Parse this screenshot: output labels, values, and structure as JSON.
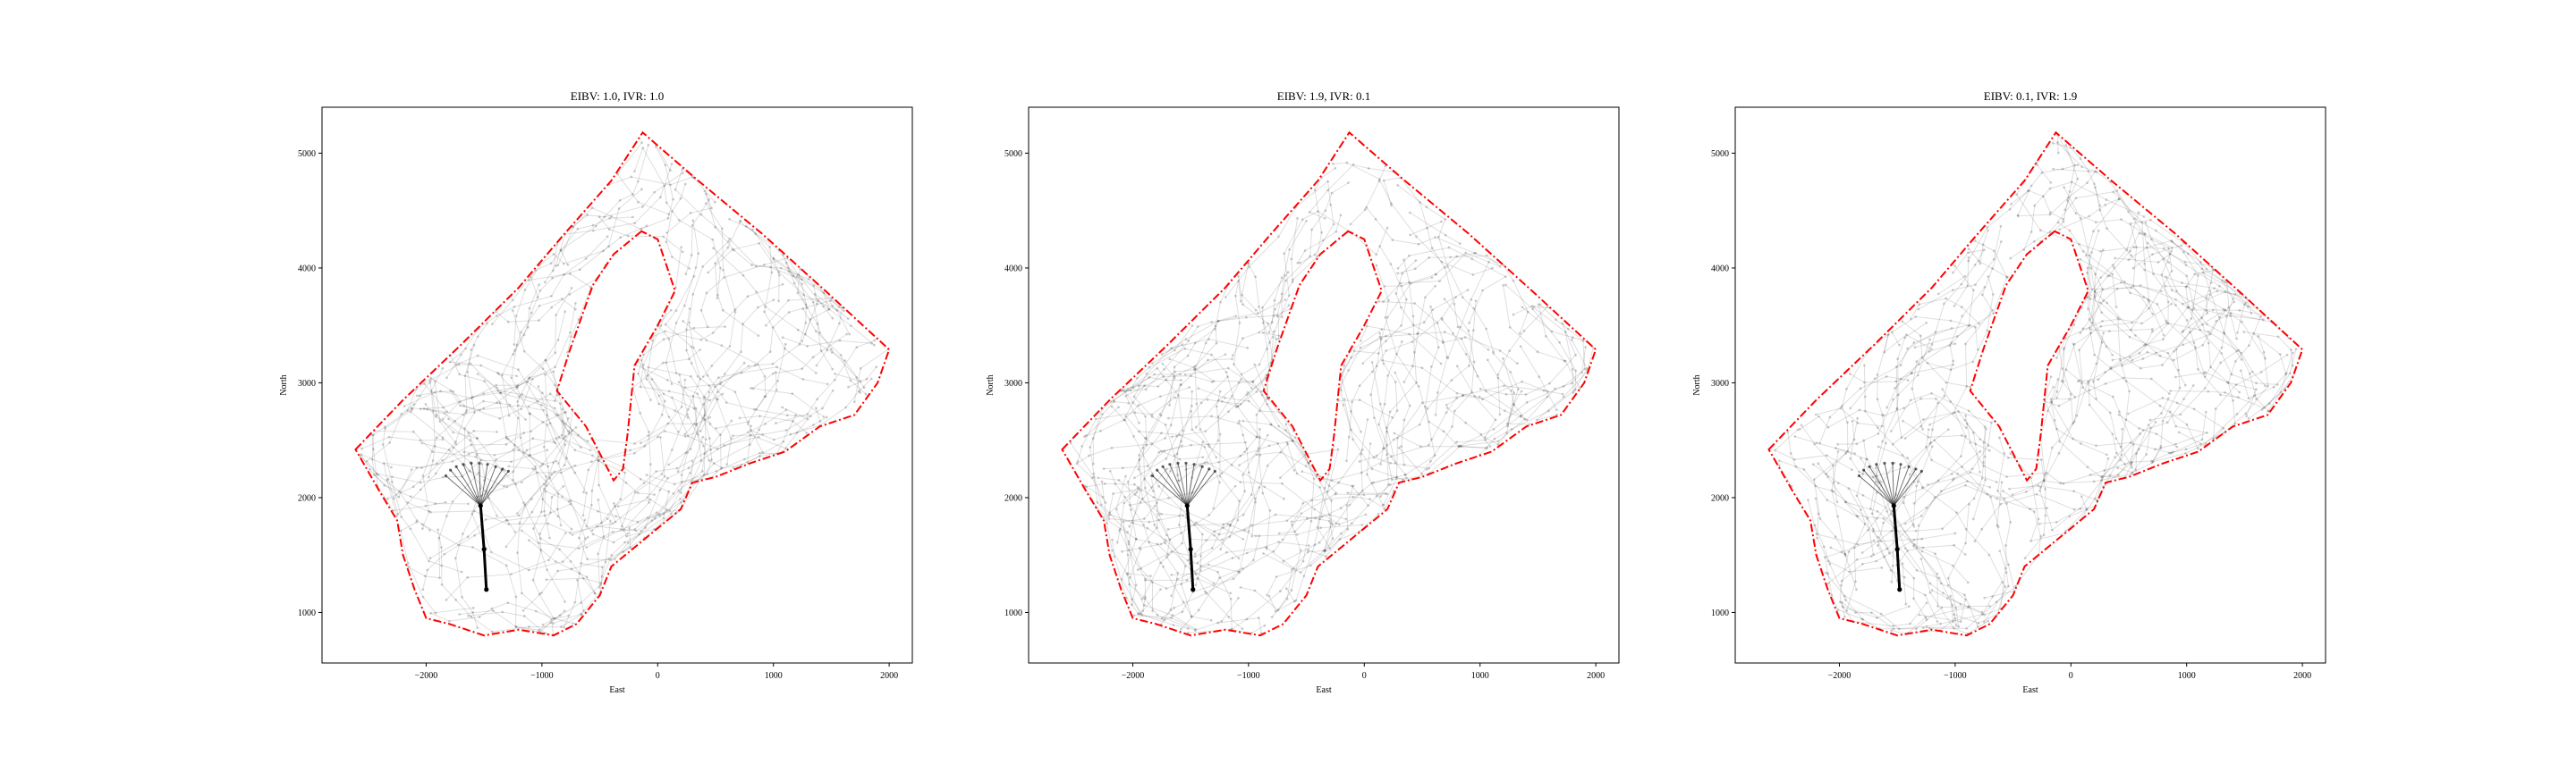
{
  "chart_data": [
    {
      "type": "scatter",
      "title": "EIBV: 1.0, IVR: 1.0",
      "xlabel": "East",
      "ylabel": "North",
      "xlim": [
        -2900,
        2200
      ],
      "ylim": [
        560,
        5400
      ],
      "xticks": [
        -2000,
        -1000,
        0,
        1000,
        2000
      ],
      "yticks": [
        1000,
        2000,
        3000,
        4000,
        5000
      ],
      "xtick_labels": [
        "−2000",
        "−1000",
        "0",
        "1000",
        "2000"
      ],
      "ytick_labels": [
        "1000",
        "2000",
        "3000",
        "4000",
        "5000"
      ],
      "grid": false,
      "weights": {
        "eibv": 1.0,
        "ivr": 1.0
      },
      "path": [
        [
          -1480,
          1200
        ],
        [
          -1500,
          1550
        ],
        [
          -1530,
          1930
        ]
      ],
      "start_point": [
        -1480,
        1200
      ],
      "fan_center": [
        -1530,
        1930
      ],
      "fan_endpoints": [
        [
          -1830,
          2190
        ],
        [
          -1790,
          2240
        ],
        [
          -1740,
          2270
        ],
        [
          -1680,
          2290
        ],
        [
          -1610,
          2300
        ],
        [
          -1540,
          2300
        ],
        [
          -1470,
          2290
        ],
        [
          -1400,
          2270
        ],
        [
          -1340,
          2250
        ],
        [
          -1290,
          2230
        ]
      ],
      "boundary": [
        [
          -2610,
          2420
        ],
        [
          -2200,
          2850
        ],
        [
          -1700,
          3330
        ],
        [
          -1200,
          3830
        ],
        [
          -820,
          4280
        ],
        [
          -400,
          4760
        ],
        [
          -130,
          5180
        ],
        [
          350,
          4760
        ],
        [
          900,
          4300
        ],
        [
          1450,
          3800
        ],
        [
          2000,
          3290
        ],
        [
          1900,
          3000
        ],
        [
          1700,
          2720
        ],
        [
          1400,
          2620
        ],
        [
          1100,
          2400
        ],
        [
          800,
          2300
        ],
        [
          500,
          2180
        ],
        [
          300,
          2130
        ],
        [
          200,
          1900
        ],
        [
          -100,
          1650
        ],
        [
          -400,
          1400
        ],
        [
          -500,
          1150
        ],
        [
          -700,
          900
        ],
        [
          -900,
          800
        ],
        [
          -1200,
          850
        ],
        [
          -1500,
          800
        ],
        [
          -1800,
          900
        ],
        [
          -2000,
          950
        ],
        [
          -2100,
          1200
        ],
        [
          -2200,
          1500
        ],
        [
          -2250,
          1800
        ],
        [
          -2400,
          2050
        ],
        [
          -2610,
          2420
        ]
      ],
      "island": [
        [
          -140,
          4320
        ],
        [
          -380,
          4120
        ],
        [
          -560,
          3850
        ],
        [
          -760,
          3280
        ],
        [
          -870,
          2930
        ],
        [
          -620,
          2620
        ],
        [
          -380,
          2150
        ],
        [
          -300,
          2250
        ],
        [
          -260,
          2550
        ],
        [
          -200,
          3150
        ],
        [
          0,
          3500
        ],
        [
          150,
          3800
        ],
        [
          0,
          4250
        ],
        [
          -140,
          4320
        ]
      ],
      "colors": {
        "boundary": "#ff0000",
        "trajectories": "#000000",
        "path": "#000000"
      },
      "trajectory_count": 170
    },
    {
      "type": "scatter",
      "title": "EIBV: 1.9, IVR: 0.1",
      "xlabel": "East",
      "ylabel": "North",
      "xlim": [
        -2900,
        2200
      ],
      "ylim": [
        560,
        5400
      ],
      "xticks": [
        -2000,
        -1000,
        0,
        1000,
        2000
      ],
      "yticks": [
        1000,
        2000,
        3000,
        4000,
        5000
      ],
      "xtick_labels": [
        "−2000",
        "−1000",
        "0",
        "1000",
        "2000"
      ],
      "ytick_labels": [
        "1000",
        "2000",
        "3000",
        "4000",
        "5000"
      ],
      "grid": false,
      "weights": {
        "eibv": 1.9,
        "ivr": 0.1
      },
      "path": [
        [
          -1480,
          1200
        ],
        [
          -1500,
          1550
        ],
        [
          -1530,
          1930
        ]
      ],
      "start_point": [
        -1480,
        1200
      ],
      "fan_center": [
        -1530,
        1930
      ],
      "fan_endpoints": [
        [
          -1830,
          2190
        ],
        [
          -1790,
          2240
        ],
        [
          -1740,
          2270
        ],
        [
          -1680,
          2290
        ],
        [
          -1610,
          2300
        ],
        [
          -1540,
          2300
        ],
        [
          -1470,
          2290
        ],
        [
          -1400,
          2270
        ],
        [
          -1340,
          2250
        ],
        [
          -1290,
          2230
        ]
      ],
      "boundary": [
        [
          -2610,
          2420
        ],
        [
          -2200,
          2850
        ],
        [
          -1700,
          3330
        ],
        [
          -1200,
          3830
        ],
        [
          -820,
          4280
        ],
        [
          -400,
          4760
        ],
        [
          -130,
          5180
        ],
        [
          350,
          4760
        ],
        [
          900,
          4300
        ],
        [
          1450,
          3800
        ],
        [
          2000,
          3290
        ],
        [
          1900,
          3000
        ],
        [
          1700,
          2720
        ],
        [
          1400,
          2620
        ],
        [
          1100,
          2400
        ],
        [
          800,
          2300
        ],
        [
          500,
          2180
        ],
        [
          300,
          2130
        ],
        [
          200,
          1900
        ],
        [
          -100,
          1650
        ],
        [
          -400,
          1400
        ],
        [
          -500,
          1150
        ],
        [
          -700,
          900
        ],
        [
          -900,
          800
        ],
        [
          -1200,
          850
        ],
        [
          -1500,
          800
        ],
        [
          -1800,
          900
        ],
        [
          -2000,
          950
        ],
        [
          -2100,
          1200
        ],
        [
          -2200,
          1500
        ],
        [
          -2250,
          1800
        ],
        [
          -2400,
          2050
        ],
        [
          -2610,
          2420
        ]
      ],
      "island": [
        [
          -140,
          4320
        ],
        [
          -380,
          4120
        ],
        [
          -560,
          3850
        ],
        [
          -760,
          3280
        ],
        [
          -870,
          2930
        ],
        [
          -620,
          2620
        ],
        [
          -380,
          2150
        ],
        [
          -300,
          2250
        ],
        [
          -260,
          2550
        ],
        [
          -200,
          3150
        ],
        [
          0,
          3500
        ],
        [
          150,
          3800
        ],
        [
          0,
          4250
        ],
        [
          -140,
          4320
        ]
      ],
      "colors": {
        "boundary": "#ff0000",
        "trajectories": "#000000",
        "path": "#000000"
      },
      "trajectory_count": 170
    },
    {
      "type": "scatter",
      "title": "EIBV: 0.1, IVR: 1.9",
      "xlabel": "East",
      "ylabel": "North",
      "xlim": [
        -2900,
        2200
      ],
      "ylim": [
        560,
        5400
      ],
      "xticks": [
        -2000,
        -1000,
        0,
        1000,
        2000
      ],
      "yticks": [
        1000,
        2000,
        3000,
        4000,
        5000
      ],
      "xtick_labels": [
        "−2000",
        "−1000",
        "0",
        "1000",
        "2000"
      ],
      "ytick_labels": [
        "1000",
        "2000",
        "3000",
        "4000",
        "5000"
      ],
      "grid": false,
      "weights": {
        "eibv": 0.1,
        "ivr": 1.9
      },
      "path": [
        [
          -1480,
          1200
        ],
        [
          -1500,
          1550
        ],
        [
          -1530,
          1930
        ]
      ],
      "start_point": [
        -1480,
        1200
      ],
      "fan_center": [
        -1530,
        1930
      ],
      "fan_endpoints": [
        [
          -1830,
          2190
        ],
        [
          -1790,
          2240
        ],
        [
          -1740,
          2270
        ],
        [
          -1680,
          2290
        ],
        [
          -1610,
          2300
        ],
        [
          -1540,
          2300
        ],
        [
          -1470,
          2290
        ],
        [
          -1400,
          2270
        ],
        [
          -1340,
          2250
        ],
        [
          -1290,
          2230
        ]
      ],
      "boundary": [
        [
          -2610,
          2420
        ],
        [
          -2200,
          2850
        ],
        [
          -1700,
          3330
        ],
        [
          -1200,
          3830
        ],
        [
          -820,
          4280
        ],
        [
          -400,
          4760
        ],
        [
          -130,
          5180
        ],
        [
          350,
          4760
        ],
        [
          900,
          4300
        ],
        [
          1450,
          3800
        ],
        [
          2000,
          3290
        ],
        [
          1900,
          3000
        ],
        [
          1700,
          2720
        ],
        [
          1400,
          2620
        ],
        [
          1100,
          2400
        ],
        [
          800,
          2300
        ],
        [
          500,
          2180
        ],
        [
          300,
          2130
        ],
        [
          200,
          1900
        ],
        [
          -100,
          1650
        ],
        [
          -400,
          1400
        ],
        [
          -500,
          1150
        ],
        [
          -700,
          900
        ],
        [
          -900,
          800
        ],
        [
          -1200,
          850
        ],
        [
          -1500,
          800
        ],
        [
          -1800,
          900
        ],
        [
          -2000,
          950
        ],
        [
          -2100,
          1200
        ],
        [
          -2200,
          1500
        ],
        [
          -2250,
          1800
        ],
        [
          -2400,
          2050
        ],
        [
          -2610,
          2420
        ]
      ],
      "island": [
        [
          -140,
          4320
        ],
        [
          -380,
          4120
        ],
        [
          -560,
          3850
        ],
        [
          -760,
          3280
        ],
        [
          -870,
          2930
        ],
        [
          -620,
          2620
        ],
        [
          -380,
          2150
        ],
        [
          -300,
          2250
        ],
        [
          -260,
          2550
        ],
        [
          -200,
          3150
        ],
        [
          0,
          3500
        ],
        [
          150,
          3800
        ],
        [
          0,
          4250
        ],
        [
          -140,
          4320
        ]
      ],
      "colors": {
        "boundary": "#ff0000",
        "trajectories": "#000000",
        "path": "#000000"
      },
      "trajectory_count": 170
    }
  ]
}
